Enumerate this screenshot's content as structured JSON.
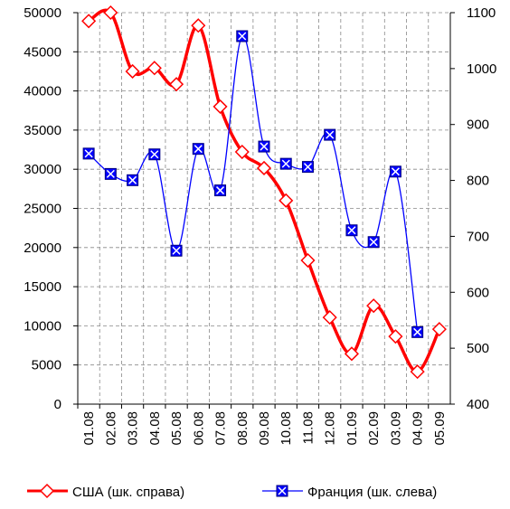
{
  "chart_data": {
    "type": "line",
    "categories": [
      "01.08",
      "02.08",
      "03.08",
      "04.08",
      "05.08",
      "06.08",
      "07.08",
      "08.08",
      "09.08",
      "10.08",
      "11.08",
      "12.08",
      "01.09",
      "02.09",
      "03.09",
      "04.09",
      "05.09"
    ],
    "series": [
      {
        "name": "США (шк. справа)",
        "color": "#ff0000",
        "axis": "y2",
        "values": [
          1085,
          1100,
          995,
          1001,
          972,
          1077,
          932,
          851,
          822,
          764,
          657,
          555,
          490,
          576,
          521,
          458,
          534
        ]
      },
      {
        "name": "Франция (шк. слева)",
        "color": "#0000ff",
        "values": [
          32000,
          29400,
          28600,
          31900,
          19600,
          32600,
          27300,
          47000,
          32900,
          30700,
          30300,
          34400,
          22200,
          20700,
          29700,
          9200,
          null
        ]
      }
    ],
    "ylim": [
      0,
      50000
    ],
    "yticks": [
      0,
      5000,
      10000,
      15000,
      20000,
      25000,
      30000,
      35000,
      40000,
      45000,
      50000
    ],
    "y2lim": [
      400,
      1100
    ],
    "y2ticks": [
      400,
      500,
      600,
      700,
      800,
      900,
      1000,
      1100
    ],
    "grid": true,
    "legend": "bottom"
  }
}
